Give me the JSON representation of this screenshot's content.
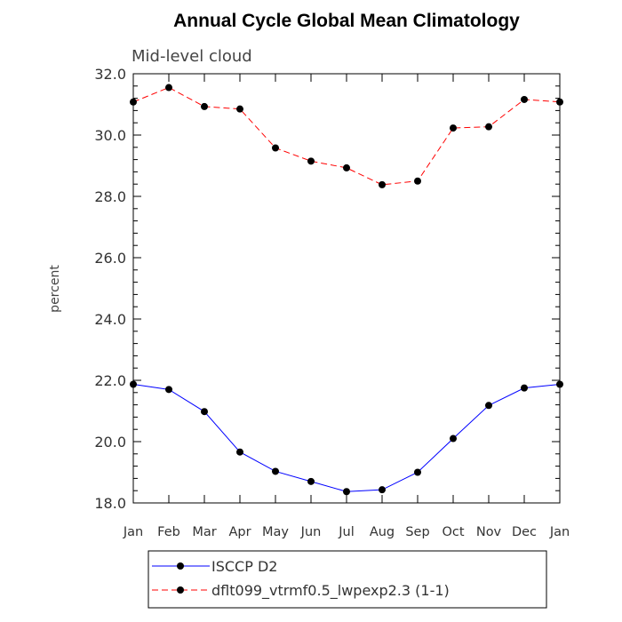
{
  "chart_data": {
    "type": "line",
    "title": "Annual Cycle Global Mean Climatology",
    "subtitle": "Mid-level cloud",
    "xlabel": "",
    "ylabel": "percent",
    "categories": [
      "Jan",
      "Feb",
      "Mar",
      "Apr",
      "May",
      "Jun",
      "Jul",
      "Aug",
      "Sep",
      "Oct",
      "Nov",
      "Dec",
      "Jan"
    ],
    "ylim": [
      18.0,
      32.0
    ],
    "yticks": [
      "18.0",
      "20.0",
      "22.0",
      "24.0",
      "26.0",
      "28.0",
      "30.0",
      "32.0"
    ],
    "ytick_values": [
      18,
      20,
      22,
      24,
      26,
      28,
      30,
      32
    ],
    "legend_position": "bottom",
    "series": [
      {
        "name": "ISCCP D2",
        "color": "#0000ff",
        "dash": "solid",
        "marker": "circle",
        "values": [
          21.87,
          21.7,
          20.98,
          19.66,
          19.03,
          18.7,
          18.37,
          18.43,
          19.0,
          20.1,
          21.18,
          21.75,
          21.87
        ]
      },
      {
        "name": "dflt099_vtrmf0.5_lwpexp2.3 (1-1)",
        "color": "#ff0000",
        "dash": "dashed",
        "marker": "circle",
        "values": [
          31.08,
          31.55,
          30.93,
          30.85,
          29.58,
          29.15,
          28.93,
          28.38,
          28.5,
          30.23,
          30.27,
          31.16,
          31.08
        ]
      }
    ]
  }
}
